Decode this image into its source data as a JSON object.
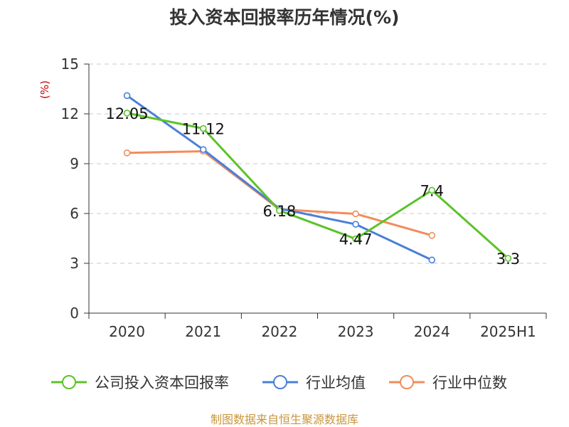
{
  "chart_data": {
    "type": "line",
    "title": "投入资本回报率历年情况(%)",
    "ylabel": "(%)",
    "xlabel": "",
    "categories": [
      "2020",
      "2021",
      "2022",
      "2023",
      "2024",
      "2025H1"
    ],
    "ylim": [
      0,
      15
    ],
    "yticks": [
      0,
      3,
      6,
      9,
      12,
      15
    ],
    "grid": true,
    "legend_position": "bottom",
    "series": [
      {
        "name": "公司投入资本回报率",
        "color": "#5cc22a",
        "values": [
          12.05,
          11.12,
          6.18,
          4.47,
          7.4,
          3.3
        ],
        "labels": [
          "12.05",
          "11.12",
          "6.18",
          "4.47",
          "7.4",
          "3.3"
        ]
      },
      {
        "name": "行业均值",
        "color": "#4a7fd8",
        "values": [
          13.1,
          9.85,
          6.3,
          5.35,
          3.2,
          null
        ]
      },
      {
        "name": "行业中位数",
        "color": "#f28c5a",
        "values": [
          9.65,
          9.75,
          6.25,
          5.98,
          4.68,
          null
        ]
      }
    ]
  },
  "source": "制图数据来自恒生聚源数据库"
}
